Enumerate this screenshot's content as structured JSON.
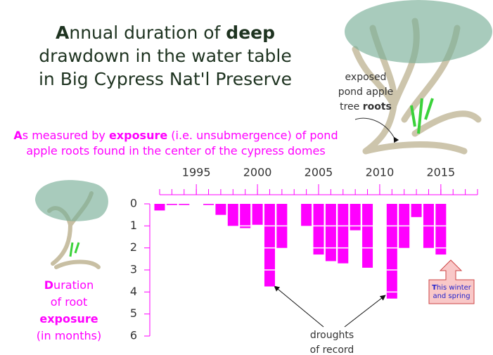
{
  "chart_data": {
    "type": "bar",
    "title_lines": [
      [
        "A",
        "nnual duration of ",
        "deep"
      ],
      [
        "drawdown in the water table"
      ],
      [
        "in Big Cypress Nat'l Preserve"
      ]
    ],
    "subtitle_lines": [
      [
        "A",
        "s measured by ",
        "exposure",
        " (i.e. unsubmergence) of pond"
      ],
      [
        "apple roots found in the center of the cypress domes"
      ]
    ],
    "y_label_lines": [
      [
        "D",
        "uration"
      ],
      [
        "of root"
      ],
      [
        "exposure"
      ],
      [
        "(in months)"
      ]
    ],
    "tree_note": [
      "exposed",
      "pond apple",
      "tree ",
      "roots"
    ],
    "drought_note": [
      "droughts",
      "of record"
    ],
    "current_note": [
      "T",
      "his winter",
      "and spring"
    ],
    "x": [
      1992,
      1993,
      1994,
      1996,
      1997,
      1998,
      1999,
      2000,
      2001,
      2002,
      2004,
      2005,
      2006,
      2007,
      2008,
      2009,
      2011,
      2012,
      2013,
      2014,
      2015
    ],
    "values": [
      0.3,
      0.05,
      0.05,
      0.05,
      0.5,
      1.0,
      1.1,
      0.95,
      3.75,
      2.0,
      1.0,
      2.3,
      2.6,
      2.7,
      1.2,
      2.9,
      4.3,
      2.0,
      0.6,
      2.0,
      2.3
    ],
    "color": "#ff00ff",
    "xlim": [
      1992,
      2018
    ],
    "xticks": [
      1995,
      2000,
      2005,
      2010,
      2015
    ],
    "ylim": [
      0,
      6
    ],
    "yticks": [
      0,
      1,
      2,
      3,
      4,
      5,
      6
    ],
    "y_inverted": true
  }
}
